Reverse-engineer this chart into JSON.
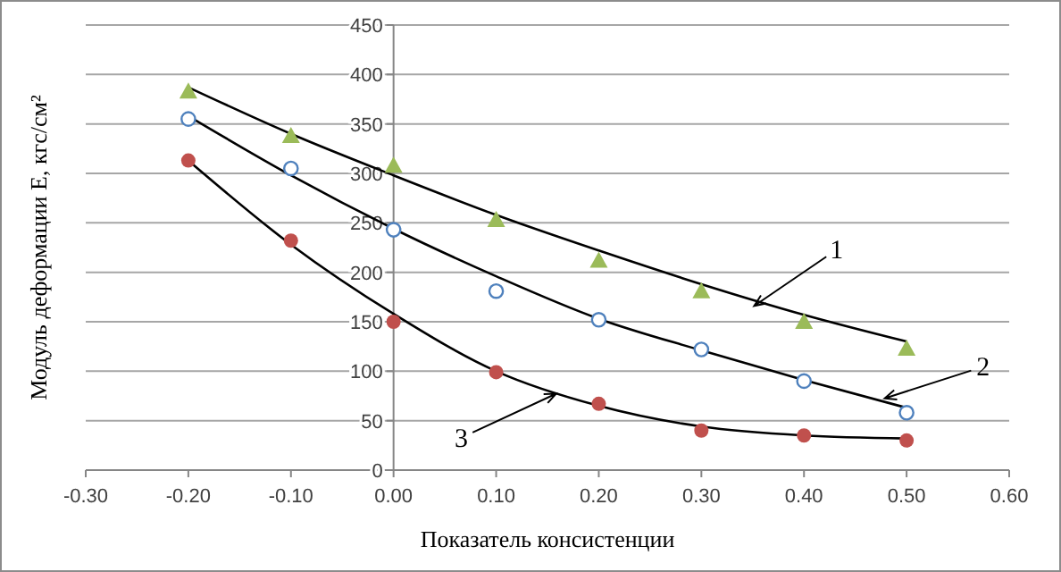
{
  "chart_data": {
    "type": "scatter",
    "xlabel": "Показатель консистенции",
    "ylabel": "Модуль деформации E, кгс/см²",
    "xlim": [
      -0.3,
      0.6
    ],
    "xticks": [
      {
        "value": -0.3,
        "label": "-0.30"
      },
      {
        "value": -0.2,
        "label": "-0.20"
      },
      {
        "value": -0.1,
        "label": "-0.10"
      },
      {
        "value": 0,
        "label": "0.00"
      },
      {
        "value": 0.1,
        "label": "0.10"
      },
      {
        "value": 0.2,
        "label": "0.20"
      },
      {
        "value": 0.3,
        "label": "0.30"
      },
      {
        "value": 0.4,
        "label": "0.40"
      },
      {
        "value": 0.5,
        "label": "0.50"
      },
      {
        "value": 0.6,
        "label": "0.60"
      }
    ],
    "ylim": [
      0,
      450
    ],
    "yticks": [
      0,
      50,
      100,
      150,
      200,
      250,
      300,
      350,
      400,
      450
    ],
    "grid": "y",
    "x": [
      -0.2,
      -0.1,
      0,
      0.1,
      0.2,
      0.3,
      0.4,
      0.5
    ],
    "series": [
      {
        "marker": "triangle",
        "color": "#9bbb59",
        "values": [
          383,
          338,
          308,
          253,
          212,
          181,
          150,
          123
        ]
      },
      {
        "marker": "circle",
        "color": "#4f81bd",
        "values": [
          355,
          305,
          243,
          181,
          152,
          122,
          90,
          58
        ]
      },
      {
        "marker": "circle",
        "color": "#c0504d",
        "values": [
          313,
          232,
          150,
          99,
          67,
          40,
          35,
          30
        ]
      },
      {
        "type": "line",
        "marker": "none",
        "line_style": "solid",
        "color": "#000000",
        "values": [
          387,
          340,
          298,
          258,
          222,
          188,
          157,
          130
        ]
      },
      {
        "type": "line",
        "marker": "none",
        "line_style": "solid",
        "color": "#000000",
        "values": [
          358,
          298,
          244,
          196,
          153,
          121,
          91,
          63
        ]
      },
      {
        "type": "line",
        "marker": "none",
        "line_style": "solid",
        "color": "#000000",
        "values": [
          313,
          228,
          158,
          100,
          65,
          44,
          35,
          32
        ]
      }
    ],
    "annotations": [
      {
        "text": "1",
        "x": 0.35,
        "y": 165
      },
      {
        "text": "2",
        "x": 0.477,
        "y": 72
      },
      {
        "text": "3",
        "x": 0.16,
        "y": 78
      }
    ]
  }
}
